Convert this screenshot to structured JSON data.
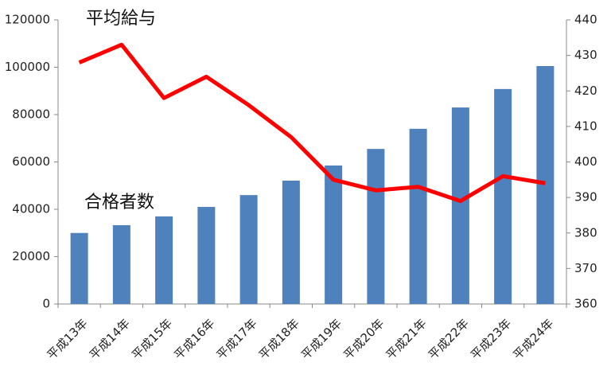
{
  "chart_data": {
    "type": "bar-line",
    "categories": [
      "平成13年",
      "平成14年",
      "平成15年",
      "平成16年",
      "平成17年",
      "平成18年",
      "平成19年",
      "平成20年",
      "平成21年",
      "平成22年",
      "平成23年",
      "平成24年"
    ],
    "series": [
      {
        "name": "合格者数",
        "type": "bar",
        "color": "#4f81bd",
        "values": [
          30000,
          33300,
          37000,
          41000,
          46000,
          52100,
          58500,
          65500,
          74000,
          83000,
          90800,
          100500
        ]
      },
      {
        "name": "平均給与",
        "type": "line",
        "axis": "y2",
        "color": "#ff0000",
        "values": [
          428,
          433,
          418,
          424,
          416,
          407,
          395,
          392,
          393,
          389,
          396,
          394
        ]
      }
    ],
    "ylim": [
      0,
      120000
    ],
    "yticks": [
      0,
      20000,
      40000,
      60000,
      80000,
      100000,
      120000
    ],
    "y2lim": [
      360,
      440
    ],
    "y2ticks": [
      360,
      370,
      380,
      390,
      400,
      410,
      420,
      430,
      440
    ],
    "grid": false
  }
}
